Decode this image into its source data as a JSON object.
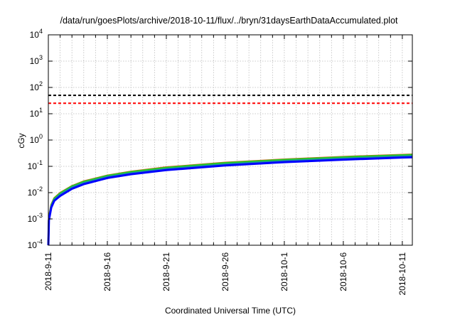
{
  "chart_data": {
    "type": "line",
    "title": "/data/run/goesPlots/archive/2018-10-11/flux/../bryn/31daysEarthDataAccumulated.plot",
    "xlabel": "Coordinated Universal Time (UTC)",
    "ylabel": "cGy",
    "yscale": "log",
    "ylim": [
      0.0001,
      10000
    ],
    "y_tick_exponents": [
      "-4",
      "-3",
      "-2",
      "-1",
      "0",
      "1",
      "2",
      "3",
      "4"
    ],
    "xlim_days": [
      0,
      30.85
    ],
    "x_ticks": [
      {
        "day": 0,
        "label": "2018-9-11"
      },
      {
        "day": 5,
        "label": "2018-9-16"
      },
      {
        "day": 10,
        "label": "2018-9-21"
      },
      {
        "day": 15,
        "label": "2018-9-26"
      },
      {
        "day": 20,
        "label": "2018-10-1"
      },
      {
        "day": 25,
        "label": "2018-10-6"
      },
      {
        "day": 30,
        "label": "2018-10-11"
      }
    ],
    "grid": true,
    "thresholds": [
      {
        "name": "black-threshold",
        "value": 50,
        "color": "#000000"
      },
      {
        "name": "red-threshold",
        "value": 25,
        "color": "#ff0000"
      }
    ],
    "x_days": [
      0,
      0.05,
      0.25,
      0.5,
      1,
      2,
      3,
      5,
      7,
      10,
      15,
      20,
      25,
      30,
      30.85
    ],
    "series": [
      {
        "name": "series-red",
        "color": "#e05020",
        "values": [
          0.0001,
          0.0012,
          0.0035,
          0.0062,
          0.0098,
          0.018,
          0.027,
          0.045,
          0.063,
          0.092,
          0.138,
          0.184,
          0.23,
          0.276,
          0.284
        ]
      },
      {
        "name": "series-green",
        "color": "#22cc22",
        "values": [
          0.0001,
          0.0011,
          0.0033,
          0.006,
          0.0094,
          0.0175,
          0.026,
          0.044,
          0.061,
          0.089,
          0.134,
          0.178,
          0.223,
          0.267,
          0.275
        ]
      },
      {
        "name": "series-teal",
        "color": "#2090a0",
        "values": [
          0.0001,
          0.001,
          0.003,
          0.0054,
          0.0085,
          0.0158,
          0.0235,
          0.04,
          0.055,
          0.08,
          0.12,
          0.16,
          0.2,
          0.24,
          0.247
        ]
      },
      {
        "name": "series-blue",
        "color": "#0000ff",
        "values": [
          0.0001,
          0.0009,
          0.0027,
          0.0049,
          0.0075,
          0.014,
          0.021,
          0.036,
          0.05,
          0.072,
          0.108,
          0.144,
          0.18,
          0.216,
          0.222
        ]
      }
    ]
  }
}
